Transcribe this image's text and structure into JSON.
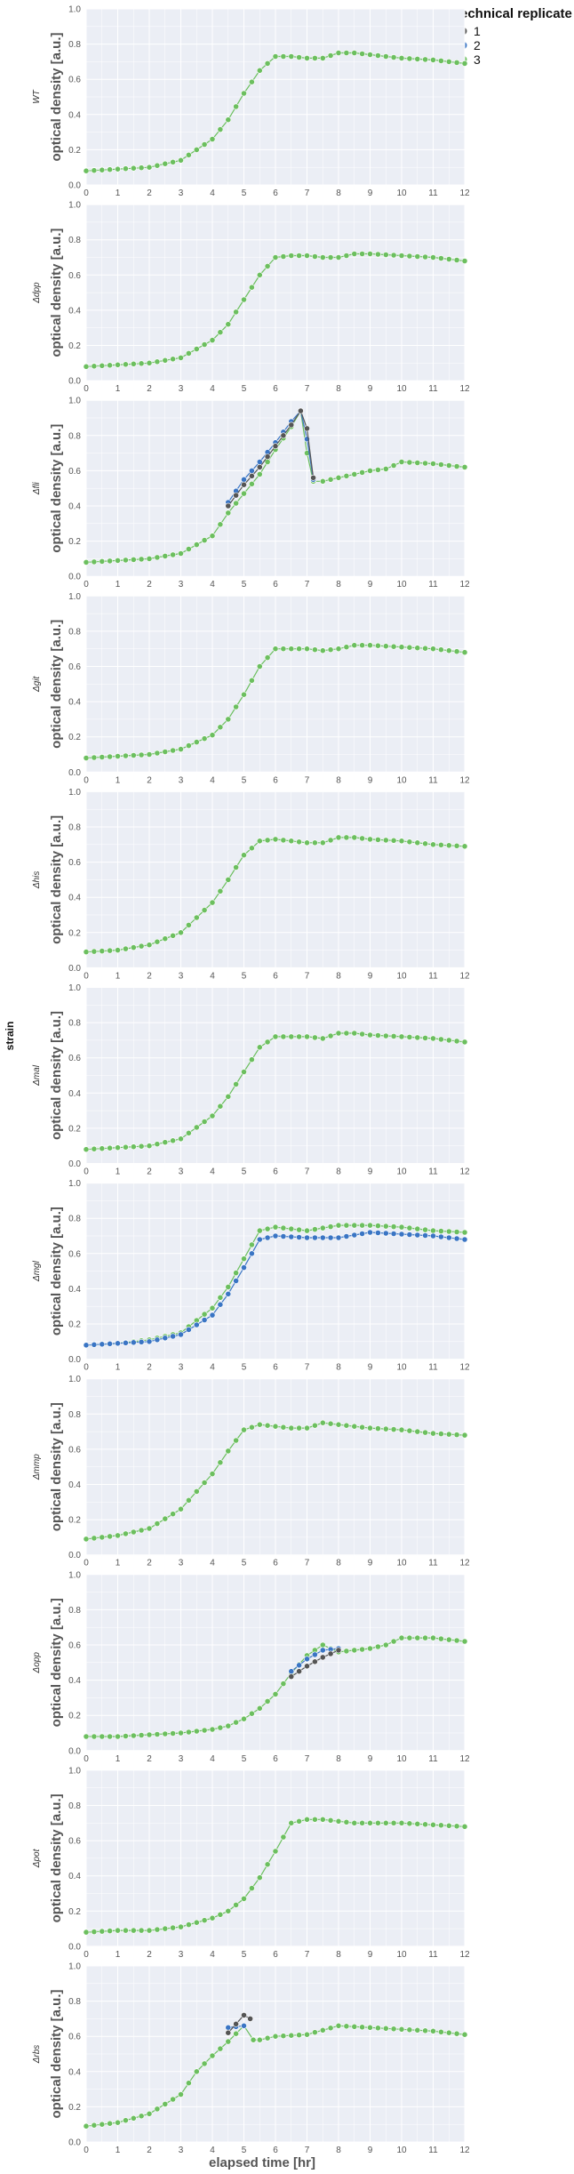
{
  "colors": {
    "panel_bg": "#ebeef5",
    "grid": "#ffffff",
    "replicate_1": "#555555",
    "replicate_2": "#3a75c4",
    "replicate_3": "#6cbf5f"
  },
  "chart_data": {
    "type": "scatter",
    "xlabel": "elapsed time [hr]",
    "ylabel": "optical density [a.u.]",
    "strip_label": "strain",
    "xlim": [
      0,
      12
    ],
    "ylim": [
      0,
      1.0
    ],
    "xticks": [
      "0",
      "1",
      "2",
      "3",
      "4",
      "5",
      "6",
      "7",
      "8",
      "9",
      "10",
      "11",
      "12"
    ],
    "yticks": [
      "0.0",
      "0.2",
      "0.4",
      "0.6",
      "0.8",
      "1.0"
    ],
    "grid": true,
    "legend": {
      "title": "technical replicate",
      "placement": "top-right outside",
      "entries": [
        {
          "label": "1",
          "color": "#555555"
        },
        {
          "label": "2",
          "color": "#3a75c4"
        },
        {
          "label": "3",
          "color": "#6cbf5f"
        }
      ]
    },
    "panels": [
      {
        "strain": "WT",
        "series": [
          {
            "replicate": "3",
            "x": [
              0,
              1,
              2,
              3,
              4,
              4.5,
              5,
              5.5,
              6,
              6.5,
              7,
              7.5,
              8,
              8.5,
              9,
              10,
              11,
              12
            ],
            "y": [
              0.08,
              0.09,
              0.1,
              0.14,
              0.26,
              0.37,
              0.52,
              0.65,
              0.73,
              0.73,
              0.72,
              0.72,
              0.75,
              0.75,
              0.74,
              0.72,
              0.71,
              0.69
            ]
          }
        ]
      },
      {
        "strain": "Δdpp",
        "series": [
          {
            "replicate": "3",
            "x": [
              0,
              1,
              2,
              3,
              4,
              4.5,
              5,
              5.5,
              6,
              6.5,
              7,
              7.5,
              8,
              8.5,
              9,
              10,
              11,
              12
            ],
            "y": [
              0.08,
              0.09,
              0.1,
              0.13,
              0.23,
              0.32,
              0.46,
              0.6,
              0.7,
              0.71,
              0.71,
              0.7,
              0.7,
              0.72,
              0.72,
              0.71,
              0.7,
              0.68
            ]
          }
        ]
      },
      {
        "strain": "Δfli",
        "series": [
          {
            "replicate": "1",
            "x": [
              4.5,
              5,
              5.5,
              6,
              6.5,
              6.8,
              7,
              7.2
            ],
            "y": [
              0.4,
              0.52,
              0.62,
              0.74,
              0.86,
              0.94,
              0.84,
              0.56
            ]
          },
          {
            "replicate": "2",
            "x": [
              4.5,
              5,
              5.5,
              6,
              6.5,
              6.8,
              7,
              7.2
            ],
            "y": [
              0.42,
              0.55,
              0.65,
              0.76,
              0.88,
              0.94,
              0.78,
              0.55
            ]
          },
          {
            "replicate": "3",
            "x": [
              0,
              1,
              2,
              3,
              4,
              4.5,
              5,
              5.5,
              6,
              6.5,
              6.8,
              7,
              7.2,
              7.5,
              8,
              8.5,
              9,
              9.5,
              10,
              11,
              12
            ],
            "y": [
              0.08,
              0.09,
              0.1,
              0.13,
              0.23,
              0.36,
              0.47,
              0.58,
              0.72,
              0.85,
              0.94,
              0.7,
              0.54,
              0.54,
              0.56,
              0.58,
              0.6,
              0.61,
              0.65,
              0.64,
              0.62
            ]
          }
        ]
      },
      {
        "strain": "Δgit",
        "series": [
          {
            "replicate": "3",
            "x": [
              0,
              1,
              2,
              3,
              4,
              4.5,
              5,
              5.5,
              6,
              6.5,
              7,
              7.5,
              8,
              8.5,
              9,
              10,
              11,
              12
            ],
            "y": [
              0.08,
              0.09,
              0.1,
              0.13,
              0.21,
              0.3,
              0.44,
              0.6,
              0.7,
              0.7,
              0.7,
              0.69,
              0.7,
              0.72,
              0.72,
              0.71,
              0.7,
              0.68
            ]
          }
        ]
      },
      {
        "strain": "Δhis",
        "series": [
          {
            "replicate": "3",
            "x": [
              0,
              1,
              2,
              3,
              4,
              4.5,
              5,
              5.5,
              6,
              6.5,
              7,
              7.5,
              8,
              8.5,
              9,
              10,
              11,
              12
            ],
            "y": [
              0.09,
              0.1,
              0.13,
              0.2,
              0.37,
              0.5,
              0.64,
              0.72,
              0.73,
              0.72,
              0.71,
              0.71,
              0.74,
              0.74,
              0.73,
              0.72,
              0.7,
              0.69
            ]
          }
        ]
      },
      {
        "strain": "Δmal",
        "series": [
          {
            "replicate": "3",
            "x": [
              0,
              1,
              2,
              3,
              4,
              4.5,
              5,
              5.5,
              6,
              6.5,
              7,
              7.5,
              8,
              8.5,
              9,
              10,
              11,
              12
            ],
            "y": [
              0.08,
              0.09,
              0.1,
              0.14,
              0.27,
              0.38,
              0.52,
              0.66,
              0.72,
              0.72,
              0.72,
              0.71,
              0.74,
              0.74,
              0.73,
              0.72,
              0.71,
              0.69
            ]
          }
        ]
      },
      {
        "strain": "Δmgl",
        "series": [
          {
            "replicate": "2",
            "x": [
              0,
              1,
              2,
              3,
              4,
              4.5,
              5,
              5.5,
              6,
              7,
              8,
              9,
              10,
              11,
              12
            ],
            "y": [
              0.08,
              0.09,
              0.1,
              0.14,
              0.25,
              0.37,
              0.52,
              0.68,
              0.7,
              0.69,
              0.69,
              0.72,
              0.71,
              0.7,
              0.68
            ]
          },
          {
            "replicate": "3",
            "x": [
              0,
              1,
              2,
              3,
              4,
              4.5,
              5,
              5.5,
              6,
              7,
              8,
              9,
              10,
              11,
              12
            ],
            "y": [
              0.08,
              0.09,
              0.11,
              0.15,
              0.29,
              0.41,
              0.57,
              0.73,
              0.75,
              0.73,
              0.76,
              0.76,
              0.75,
              0.73,
              0.72
            ]
          }
        ]
      },
      {
        "strain": "Δmmp",
        "series": [
          {
            "replicate": "3",
            "x": [
              0,
              1,
              2,
              3,
              4,
              4.5,
              5,
              5.5,
              6,
              6.5,
              7,
              7.5,
              8,
              8.5,
              9,
              10,
              11,
              12
            ],
            "y": [
              0.09,
              0.11,
              0.15,
              0.26,
              0.46,
              0.59,
              0.71,
              0.74,
              0.73,
              0.72,
              0.72,
              0.75,
              0.74,
              0.73,
              0.72,
              0.71,
              0.69,
              0.68
            ]
          }
        ]
      },
      {
        "strain": "Δopp",
        "series": [
          {
            "replicate": "1",
            "x": [
              6.5,
              7,
              7.5,
              8
            ],
            "y": [
              0.42,
              0.48,
              0.53,
              0.57
            ]
          },
          {
            "replicate": "2",
            "x": [
              6.5,
              7,
              7.5,
              8
            ],
            "y": [
              0.45,
              0.52,
              0.57,
              0.58
            ]
          },
          {
            "replicate": "3",
            "x": [
              0,
              1,
              2,
              3,
              4,
              4.5,
              5,
              5.5,
              6,
              6.5,
              7,
              7.5,
              8,
              8.5,
              9,
              9.5,
              10,
              11,
              12
            ],
            "y": [
              0.08,
              0.08,
              0.09,
              0.1,
              0.12,
              0.14,
              0.18,
              0.24,
              0.32,
              0.44,
              0.54,
              0.6,
              0.56,
              0.57,
              0.58,
              0.6,
              0.64,
              0.64,
              0.62
            ]
          }
        ]
      },
      {
        "strain": "Δpot",
        "series": [
          {
            "replicate": "3",
            "x": [
              0,
              1,
              2,
              3,
              4,
              4.5,
              5,
              5.5,
              6,
              6.5,
              7,
              7.5,
              8,
              8.5,
              9,
              10,
              11,
              12
            ],
            "y": [
              0.08,
              0.09,
              0.09,
              0.11,
              0.16,
              0.2,
              0.27,
              0.39,
              0.54,
              0.7,
              0.72,
              0.72,
              0.71,
              0.7,
              0.7,
              0.7,
              0.69,
              0.68
            ]
          }
        ]
      },
      {
        "strain": "Δrbs",
        "series": [
          {
            "replicate": "1",
            "x": [
              4.5,
              5,
              5.2
            ],
            "y": [
              0.62,
              0.72,
              0.7
            ]
          },
          {
            "replicate": "2",
            "x": [
              4.5,
              5
            ],
            "y": [
              0.65,
              0.66
            ]
          },
          {
            "replicate": "3",
            "x": [
              0,
              1,
              2,
              3,
              3.5,
              4,
              4.5,
              5,
              5.3,
              5.5,
              6,
              7,
              8,
              9,
              10,
              11,
              12
            ],
            "y": [
              0.09,
              0.11,
              0.16,
              0.27,
              0.4,
              0.49,
              0.57,
              0.66,
              0.58,
              0.58,
              0.6,
              0.61,
              0.66,
              0.65,
              0.64,
              0.63,
              0.61
            ]
          }
        ]
      }
    ]
  }
}
